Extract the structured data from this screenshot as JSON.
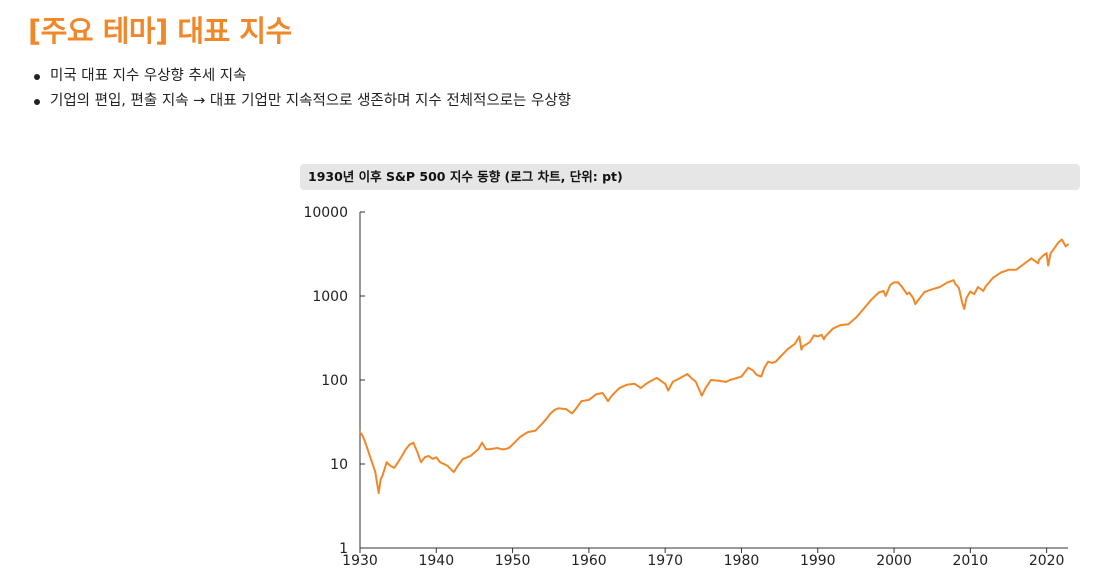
{
  "page_title": "[주요 테마] 대표 지수",
  "colors": {
    "accent": "#f0882a",
    "series": "#f0882a",
    "caption_bg": "#e6e6e6",
    "text": "#222222"
  },
  "bullets": [
    "미국 대표 지수 우상향 추세 지속",
    "기업의 편입, 편출 지속 → 대표 기업만 지속적으로 생존하며 지수 전체적으로는 우상향"
  ],
  "chart_data": {
    "type": "line",
    "title": "1930년 이후 S&P 500 지수 동향 (로그 차트, 단위: pt)",
    "xlabel": "",
    "ylabel": "",
    "y_scale": "log",
    "ylim": [
      1,
      10000
    ],
    "xlim": [
      1930,
      2022.8
    ],
    "x_ticks": [
      1930,
      1940,
      1950,
      1960,
      1970,
      1980,
      1990,
      2000,
      2010,
      2020
    ],
    "x_tick_labels": [
      "1930",
      "1940",
      "1950",
      "1960",
      "1970",
      "1980",
      "1990",
      "2000",
      "2010",
      "2020"
    ],
    "y_ticks": [
      1,
      10,
      100,
      1000,
      10000
    ],
    "y_tick_labels": [
      "1",
      "10",
      "100",
      "1000",
      "10000"
    ],
    "grid": false,
    "legend": "none",
    "series": [
      {
        "x": [
          1930.0,
          1930.3,
          1930.6,
          1931.0,
          1931.5,
          1932.0,
          1932.45,
          1932.7,
          1933.0,
          1933.5,
          1934.0,
          1934.5,
          1935.0,
          1935.5,
          1936.0,
          1936.5,
          1937.0,
          1937.5,
          1938.0,
          1938.5,
          1939.0,
          1939.5,
          1940.0,
          1940.5,
          1941.0,
          1941.5,
          1942.0,
          1942.3,
          1942.8,
          1943.5,
          1944.5,
          1945.5,
          1946.0,
          1946.5,
          1947.0,
          1948.0,
          1948.5,
          1949.0,
          1949.5,
          1950.0,
          1951.0,
          1952.0,
          1953.0,
          1954.0,
          1954.5,
          1955.0,
          1955.5,
          1956.0,
          1957.0,
          1957.8,
          1958.0,
          1958.5,
          1959.0,
          1960.0,
          1961.0,
          1961.8,
          1962.5,
          1963.0,
          1964.0,
          1965.0,
          1966.0,
          1966.8,
          1967.5,
          1968.0,
          1968.9,
          1970.0,
          1970.4,
          1971.0,
          1972.0,
          1972.9,
          1973.5,
          1974.0,
          1974.8,
          1975.3,
          1976.0,
          1977.0,
          1978.0,
          1978.5,
          1979.0,
          1980.0,
          1980.9,
          1981.5,
          1982.0,
          1982.6,
          1983.0,
          1983.5,
          1984.0,
          1984.5,
          1985.0,
          1986.0,
          1987.0,
          1987.6,
          1987.85,
          1988.0,
          1988.5,
          1989.0,
          1989.5,
          1990.0,
          1990.5,
          1990.8,
          1991.0,
          1992.0,
          1993.0,
          1994.0,
          1995.0,
          1996.0,
          1997.0,
          1998.0,
          1998.6,
          1998.9,
          1999.5,
          2000.0,
          2000.5,
          2001.0,
          2001.7,
          2002.0,
          2002.5,
          2002.8,
          2003.0,
          2004.0,
          2005.0,
          2006.0,
          2007.0,
          2007.8,
          2008.0,
          2008.5,
          2008.9,
          2009.2,
          2009.5,
          2010.0,
          2010.5,
          2011.0,
          2011.7,
          2012.0,
          2013.0,
          2014.0,
          2015.0,
          2016.0,
          2017.0,
          2018.0,
          2018.9,
          2019.0,
          2019.5,
          2020.0,
          2020.2,
          2020.5,
          2021.0,
          2021.5,
          2022.0,
          2022.5,
          2022.8
        ],
        "y": [
          24.0,
          22.0,
          19.0,
          15.0,
          11.0,
          8.0,
          4.5,
          6.5,
          7.5,
          10.5,
          9.5,
          9.0,
          10.5,
          12.5,
          15.0,
          17.0,
          18.0,
          14.0,
          10.5,
          12.0,
          12.5,
          11.5,
          12.0,
          10.5,
          10.0,
          9.5,
          8.5,
          8.0,
          9.5,
          11.5,
          12.5,
          15.0,
          18.0,
          15.0,
          15.0,
          15.5,
          15.0,
          15.0,
          15.5,
          17.0,
          21.0,
          24.0,
          25.0,
          31.0,
          35.0,
          40.0,
          44.0,
          46.0,
          45.0,
          40.0,
          42.0,
          48.0,
          56.0,
          58.0,
          68.0,
          70.0,
          56.0,
          65.0,
          80.0,
          88.0,
          90.0,
          80.0,
          90.0,
          96.0,
          106.0,
          90.0,
          75.0,
          95.0,
          106.0,
          118.0,
          104.0,
          96.0,
          65.0,
          80.0,
          100.0,
          98.0,
          95.0,
          100.0,
          103.0,
          110.0,
          140.0,
          130.0,
          115.0,
          110.0,
          140.0,
          165.0,
          160.0,
          165.0,
          185.0,
          230.0,
          270.0,
          330.0,
          230.0,
          250.0,
          265.0,
          285.0,
          340.0,
          330.0,
          345.0,
          305.0,
          330.0,
          410.0,
          450.0,
          460.0,
          550.0,
          700.0,
          900.0,
          1100.0,
          1150.0,
          1000.0,
          1350.0,
          1450.0,
          1460.0,
          1300.0,
          1050.0,
          1100.0,
          950.0,
          800.0,
          850.0,
          1120.0,
          1200.0,
          1280.0,
          1450.0,
          1540.0,
          1400.0,
          1250.0,
          850.0,
          700.0,
          950.0,
          1130.0,
          1050.0,
          1280.0,
          1150.0,
          1300.0,
          1650.0,
          1900.0,
          2050.0,
          2050.0,
          2400.0,
          2800.0,
          2450.0,
          2700.0,
          3000.0,
          3250.0,
          2300.0,
          3200.0,
          3700.0,
          4300.0,
          4700.0,
          3900.0,
          4100.0
        ]
      }
    ]
  }
}
